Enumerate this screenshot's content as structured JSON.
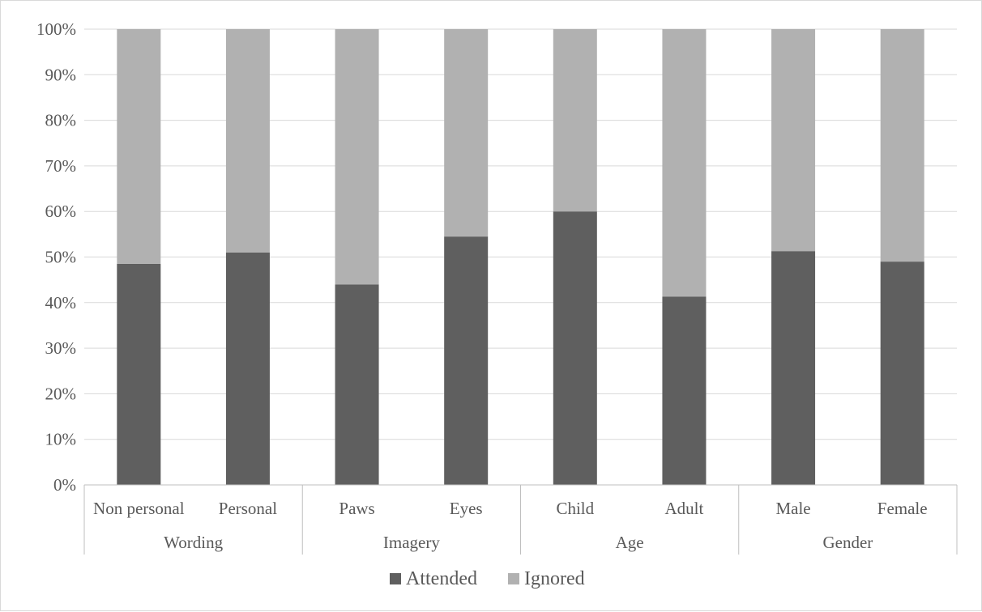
{
  "chart_data": {
    "type": "bar",
    "stacked": true,
    "ylim": [
      0,
      100
    ],
    "yticks": [
      "0%",
      "10%",
      "20%",
      "30%",
      "40%",
      "50%",
      "60%",
      "70%",
      "80%",
      "90%",
      "100%"
    ],
    "groups": [
      {
        "name": "Wording",
        "categories": [
          "Non personal",
          "Personal"
        ]
      },
      {
        "name": "Imagery",
        "categories": [
          "Paws",
          "Eyes"
        ]
      },
      {
        "name": "Age",
        "categories": [
          "Child",
          "Adult"
        ]
      },
      {
        "name": "Gender",
        "categories": [
          "Male",
          "Female"
        ]
      }
    ],
    "categories": [
      "Non personal",
      "Personal",
      "Paws",
      "Eyes",
      "Child",
      "Adult",
      "Male",
      "Female"
    ],
    "series": [
      {
        "name": "Attended",
        "color": "#5f5f5f",
        "values": [
          48.5,
          51,
          44,
          54.5,
          60,
          41.3,
          51.3,
          49
        ]
      },
      {
        "name": "Ignored",
        "color": "#b1b1b1",
        "values": [
          51.5,
          49,
          56,
          45.5,
          40,
          58.7,
          48.7,
          51
        ]
      }
    ],
    "grid": true,
    "legend": "bottom-center"
  }
}
